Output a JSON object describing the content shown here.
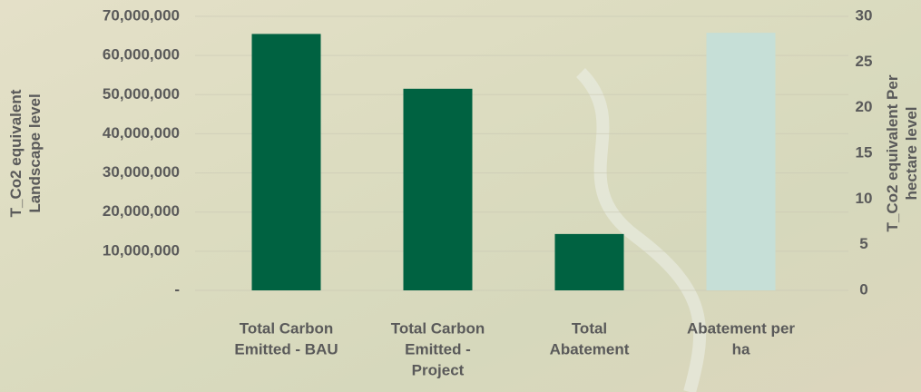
{
  "chart_data": {
    "type": "bar",
    "ylabel": [
      "T_Co2 equivalent",
      "Landscape level"
    ],
    "y2label": [
      "T_Co2 equivalent Per",
      "hectare level"
    ],
    "categories": [
      [
        "Total Carbon",
        "Emitted - BAU"
      ],
      [
        "Total Carbon",
        "Emitted -",
        "Project"
      ],
      [
        "Total",
        "Abatement"
      ],
      [
        "Abatement per",
        "ha"
      ]
    ],
    "series": [
      {
        "color": "#006241",
        "values": [
          65500000,
          51500000,
          14400000,
          null
        ]
      },
      {
        "color": "#c6dfd7",
        "axis": "y2",
        "values": [
          null,
          null,
          null,
          28.2
        ]
      }
    ],
    "ylim": [
      0,
      70000000
    ],
    "yticks": [
      {
        "value": 0,
        "label": "-"
      },
      {
        "value": 10000000,
        "label": "10,000,000"
      },
      {
        "value": 20000000,
        "label": "20,000,000"
      },
      {
        "value": 30000000,
        "label": "30,000,000"
      },
      {
        "value": 40000000,
        "label": "40,000,000"
      },
      {
        "value": 50000000,
        "label": "50,000,000"
      },
      {
        "value": 60000000,
        "label": "60,000,000"
      },
      {
        "value": 70000000,
        "label": "70,000,000"
      }
    ],
    "y2lim": [
      0,
      30
    ],
    "y2ticks": [
      0,
      5,
      10,
      15,
      20,
      25,
      30
    ],
    "grid": true
  }
}
